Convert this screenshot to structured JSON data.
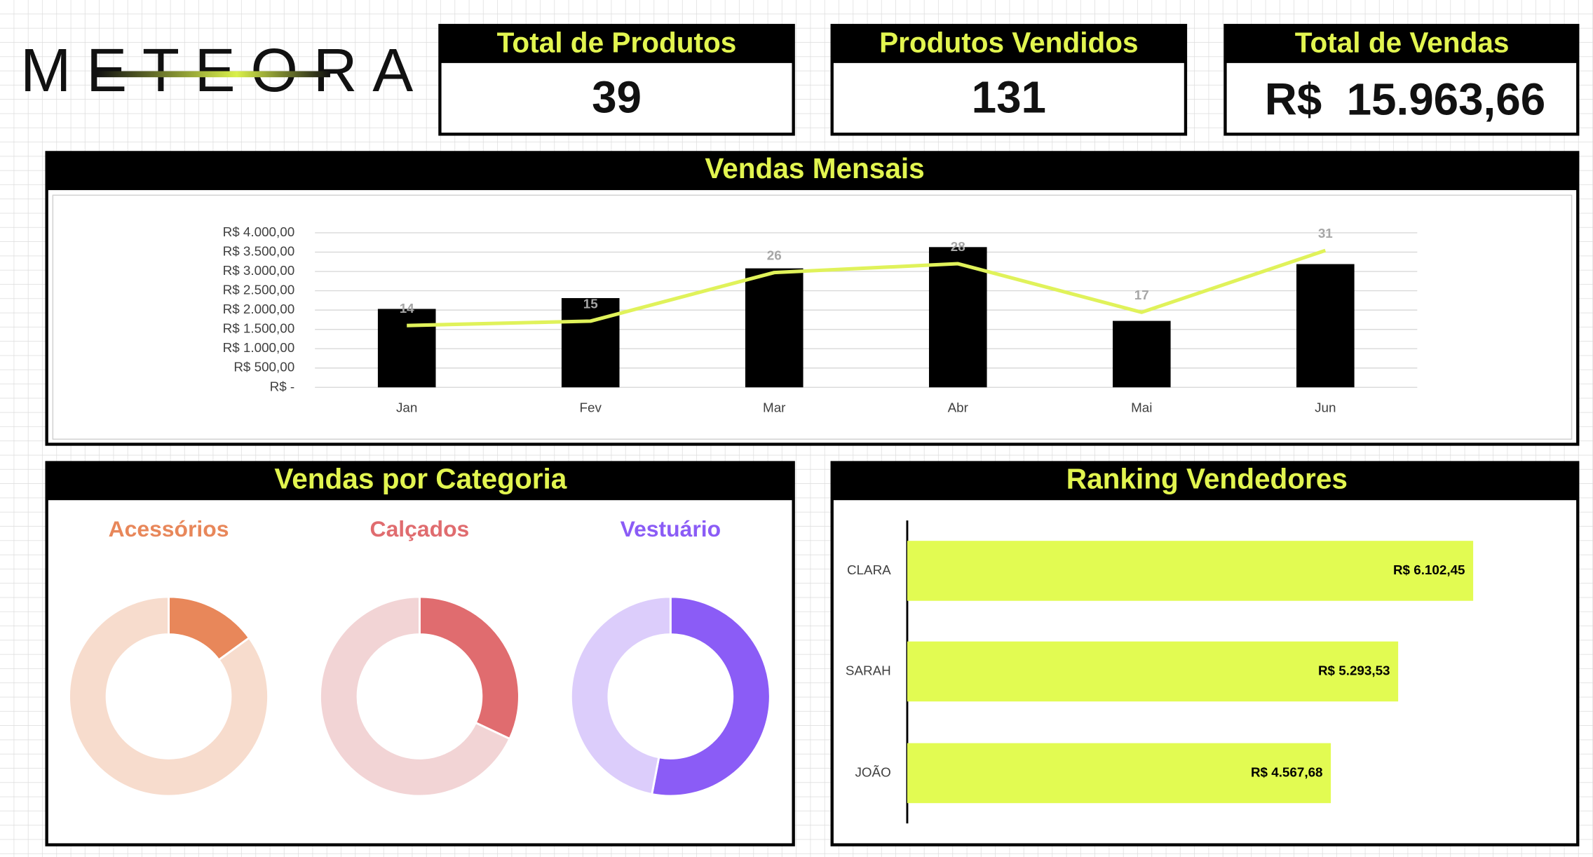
{
  "logo": "METEORA",
  "kpis": [
    {
      "title": "Total de Produtos",
      "value": "39"
    },
    {
      "title": "Produtos Vendidos",
      "value": "131"
    },
    {
      "title": "Total de Vendas",
      "value": "R$  15.963,66"
    }
  ],
  "chart_data": [
    {
      "type": "combo",
      "title": "Vendas Mensais",
      "categories": [
        "Jan",
        "Fev",
        "Mar",
        "Abr",
        "Mai",
        "Jun"
      ],
      "ylim": [
        0,
        4000
      ],
      "yticks": [
        {
          "value": 0,
          "label": "R$ -"
        },
        {
          "value": 500,
          "label": "R$ 500,00"
        },
        {
          "value": 1000,
          "label": "R$ 1.000,00"
        },
        {
          "value": 1500,
          "label": "R$ 1.500,00"
        },
        {
          "value": 2000,
          "label": "R$ 2.000,00"
        },
        {
          "value": 2500,
          "label": "R$ 2.500,00"
        },
        {
          "value": 3000,
          "label": "R$ 3.000,00"
        },
        {
          "value": 3500,
          "label": "R$ 3.500,00"
        },
        {
          "value": 4000,
          "label": "R$ 4.000,00"
        }
      ],
      "y2lim": [
        0,
        35
      ],
      "grid": true,
      "series": [
        {
          "type": "bar",
          "color": "#000000",
          "values": [
            2030,
            2310,
            3080,
            3630,
            1720,
            3190
          ]
        },
        {
          "type": "line",
          "axis": "y2",
          "color": "#e0f25a",
          "values": [
            14,
            15,
            26,
            28,
            17,
            31
          ],
          "data_labels": true
        }
      ]
    },
    {
      "type": "donut",
      "title": "Vendas por Categoria",
      "charts": [
        {
          "title": "Acessórios",
          "values": [
            15,
            85
          ],
          "colors": [
            "#e8875a",
            "#f7dccd"
          ]
        },
        {
          "title": "Calçados",
          "values": [
            32,
            68
          ],
          "colors": [
            "#e06c6f",
            "#f2d4d5"
          ]
        },
        {
          "title": "Vestuário",
          "values": [
            53,
            47
          ],
          "colors": [
            "#8b5cf6",
            "#dccdfb"
          ]
        }
      ]
    },
    {
      "type": "bar",
      "orientation": "horizontal",
      "title": "Ranking Vendedores",
      "categories": [
        "CLARA",
        "SARAH",
        "JOÃO"
      ],
      "values": [
        6102.45,
        5293.53,
        4567.68
      ],
      "value_labels": [
        "R$ 6.102,45",
        "R$ 5.293,53",
        "R$ 4.567,68"
      ],
      "color": "#e2fb52",
      "xlim": [
        0,
        7000
      ]
    }
  ]
}
